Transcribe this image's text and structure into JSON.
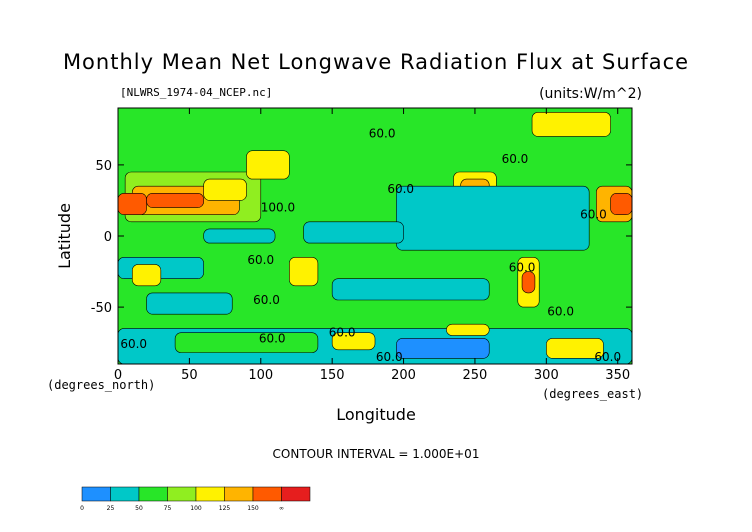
{
  "chart_data": {
    "type": "heatmap",
    "title": "Monthly Mean Net Longwave Radiation Flux at Surface",
    "subtitle_left": "[NLWRS_1974-04_NCEP.nc]",
    "subtitle_right": "(units:W/m^2)",
    "xlabel": "Longitude",
    "ylabel": "Latitude",
    "x_unit_label": "(degrees_east)",
    "y_unit_label": "(degrees_north)",
    "xlim": [
      0,
      360
    ],
    "ylim": [
      -90,
      90
    ],
    "x_ticks": [
      0,
      50,
      100,
      150,
      200,
      250,
      300,
      350
    ],
    "y_ticks": [
      50,
      0,
      -50
    ],
    "contour_interval_text": "CONTOUR INTERVAL = 1.000E+01",
    "colorbar": {
      "levels": [
        "0",
        "25",
        "50",
        "75",
        "100",
        "125",
        "150",
        "∞"
      ],
      "colors": [
        "#1e90ff",
        "#00c8c8",
        "#28e628",
        "#90ee20",
        "#fff200",
        "#ffb400",
        "#ff5a00",
        "#e61e1e"
      ]
    },
    "contour_labels": [
      {
        "x": 185,
        "y": 72,
        "text": "60.0"
      },
      {
        "x": 278,
        "y": 54,
        "text": "60.0"
      },
      {
        "x": 198,
        "y": 33,
        "text": "60.0"
      },
      {
        "x": 112,
        "y": 20,
        "text": "100.0"
      },
      {
        "x": 333,
        "y": 15,
        "text": "60.0"
      },
      {
        "x": 100,
        "y": -17,
        "text": "60.0"
      },
      {
        "x": 283,
        "y": -22,
        "text": "60.0"
      },
      {
        "x": 104,
        "y": -45,
        "text": "60.0"
      },
      {
        "x": 310,
        "y": -53,
        "text": "60.0"
      },
      {
        "x": 108,
        "y": -72,
        "text": "60.0"
      },
      {
        "x": 157,
        "y": -68,
        "text": "60.0"
      },
      {
        "x": 11,
        "y": -76,
        "text": "60.0"
      },
      {
        "x": 190,
        "y": -85,
        "text": "60.0"
      },
      {
        "x": 343,
        "y": -85,
        "text": "60.0"
      }
    ],
    "regions": [
      {
        "lon": [
          0,
          360
        ],
        "lat": [
          -90,
          90
        ],
        "level": 2
      },
      {
        "lon": [
          5,
          100
        ],
        "lat": [
          10,
          45
        ],
        "level": 3
      },
      {
        "lon": [
          10,
          85
        ],
        "lat": [
          15,
          35
        ],
        "level": 5
      },
      {
        "lon": [
          20,
          60
        ],
        "lat": [
          20,
          30
        ],
        "level": 6
      },
      {
        "lon": [
          0,
          20
        ],
        "lat": [
          15,
          30
        ],
        "level": 6
      },
      {
        "lon": [
          60,
          90
        ],
        "lat": [
          25,
          40
        ],
        "level": 4
      },
      {
        "lon": [
          90,
          120
        ],
        "lat": [
          40,
          60
        ],
        "level": 4
      },
      {
        "lon": [
          235,
          265
        ],
        "lat": [
          20,
          45
        ],
        "level": 4
      },
      {
        "lon": [
          240,
          260
        ],
        "lat": [
          28,
          40
        ],
        "level": 5
      },
      {
        "lon": [
          335,
          360
        ],
        "lat": [
          10,
          35
        ],
        "level": 5
      },
      {
        "lon": [
          345,
          360
        ],
        "lat": [
          15,
          30
        ],
        "level": 6
      },
      {
        "lon": [
          290,
          345
        ],
        "lat": [
          70,
          87
        ],
        "level": 4
      },
      {
        "lon": [
          195,
          330
        ],
        "lat": [
          -10,
          35
        ],
        "level": 1
      },
      {
        "lon": [
          130,
          200
        ],
        "lat": [
          -5,
          10
        ],
        "level": 1
      },
      {
        "lon": [
          60,
          110
        ],
        "lat": [
          -5,
          5
        ],
        "level": 1
      },
      {
        "lon": [
          0,
          60
        ],
        "lat": [
          -30,
          -15
        ],
        "level": 1
      },
      {
        "lon": [
          20,
          80
        ],
        "lat": [
          -55,
          -40
        ],
        "level": 1
      },
      {
        "lon": [
          150,
          260
        ],
        "lat": [
          -45,
          -30
        ],
        "level": 1
      },
      {
        "lon": [
          120,
          140
        ],
        "lat": [
          -35,
          -15
        ],
        "level": 4
      },
      {
        "lon": [
          10,
          30
        ],
        "lat": [
          -35,
          -20
        ],
        "level": 4
      },
      {
        "lon": [
          280,
          295
        ],
        "lat": [
          -50,
          -15
        ],
        "level": 4
      },
      {
        "lon": [
          283,
          292
        ],
        "lat": [
          -40,
          -25
        ],
        "level": 6
      },
      {
        "lon": [
          0,
          360
        ],
        "lat": [
          -90,
          -65
        ],
        "level": 1
      },
      {
        "lon": [
          40,
          140
        ],
        "lat": [
          -82,
          -68
        ],
        "level": 2
      },
      {
        "lon": [
          150,
          180
        ],
        "lat": [
          -80,
          -68
        ],
        "level": 4
      },
      {
        "lon": [
          195,
          260
        ],
        "lat": [
          -86,
          -72
        ],
        "level": 0
      },
      {
        "lon": [
          300,
          340
        ],
        "lat": [
          -86,
          -72
        ],
        "level": 4
      },
      {
        "lon": [
          230,
          260
        ],
        "lat": [
          -70,
          -62
        ],
        "level": 4
      }
    ]
  }
}
